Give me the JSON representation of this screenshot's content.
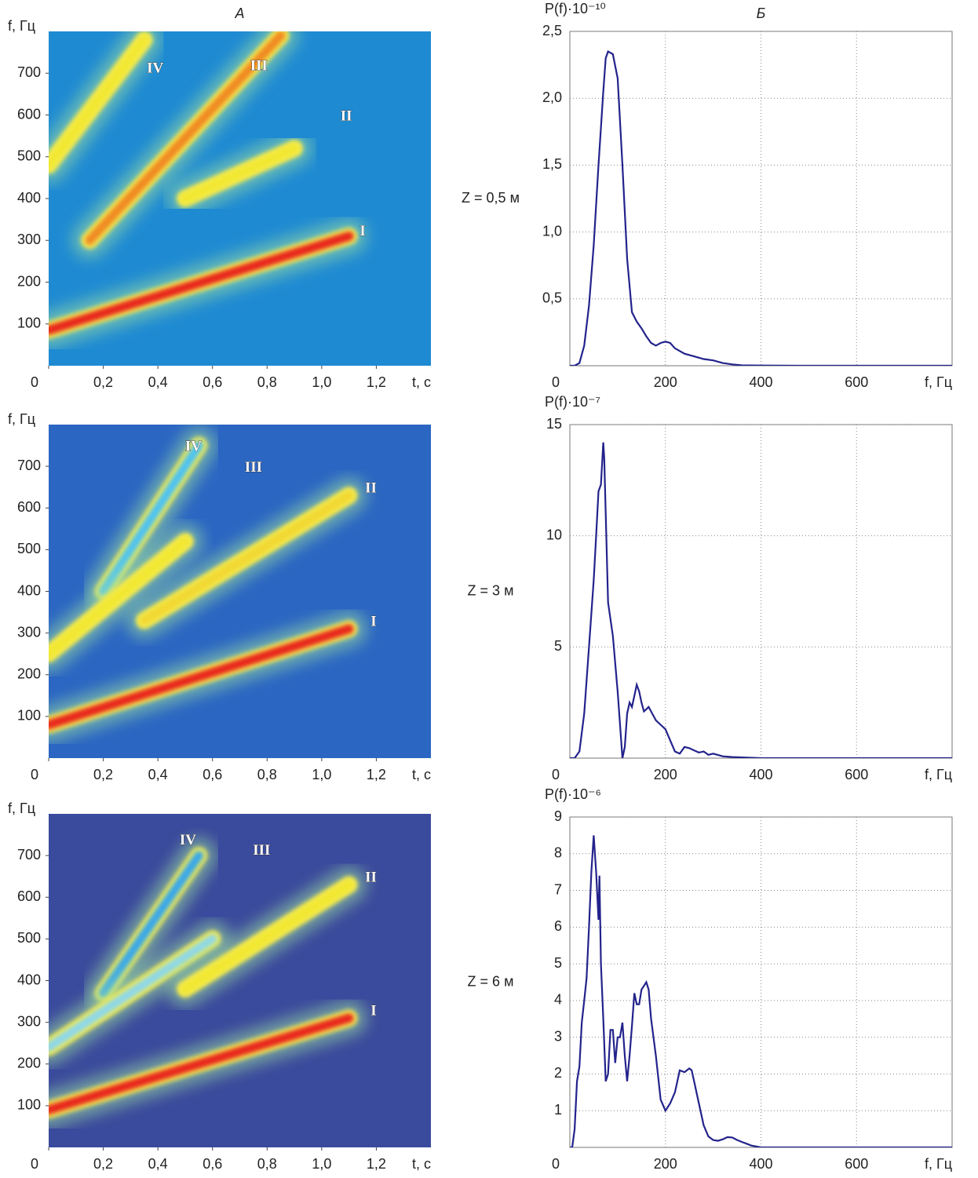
{
  "chart_data": [
    {
      "type": "spectrogram",
      "title": "А",
      "xlabel": "t, с",
      "ylabel": "f, Гц",
      "xlim": [
        0,
        1.4
      ],
      "ylim": [
        0,
        800
      ],
      "xticks": [
        0,
        {
          "value": 0.2,
          "label": "0,2"
        },
        {
          "value": 0.4,
          "label": "0,4"
        },
        {
          "value": 0.6,
          "label": "0,6"
        },
        {
          "value": 0.8,
          "label": "0,8"
        },
        {
          "value": 1.0,
          "label": "1,0"
        },
        {
          "value": 1.2,
          "label": "1,2"
        }
      ],
      "yticks": [
        100,
        200,
        300,
        400,
        500,
        600,
        700
      ],
      "background": "#1e8ad2",
      "ridges": [
        {
          "name": "IV",
          "color": "#f2e830",
          "x": [
            0,
            0.35
          ],
          "y": [
            480,
            780
          ],
          "label_at": [
            0.39,
            710
          ]
        },
        {
          "name": "III",
          "color": "#f08a20",
          "x": [
            0.15,
            0.85
          ],
          "y": [
            300,
            790
          ],
          "label_at": [
            0.77,
            715
          ]
        },
        {
          "name": "II",
          "color": "#f2e830",
          "x": [
            0.5,
            0.9
          ],
          "y": [
            400,
            520
          ],
          "label_at": [
            1.09,
            595
          ]
        },
        {
          "name": "I",
          "color": "#e8281c",
          "x": [
            0,
            1.1
          ],
          "y": [
            85,
            310
          ],
          "label_at": [
            1.15,
            320
          ]
        }
      ]
    },
    {
      "type": "line",
      "title": "Б",
      "annotation": "Z = 0,5 м",
      "xlabel": "f, Гц",
      "ylabel": "P(f)·10⁻¹⁰",
      "xlim": [
        0,
        800
      ],
      "ylim": [
        0,
        2.5
      ],
      "grid": true,
      "color": "#23238c",
      "xticks": [
        0,
        200,
        400,
        600
      ],
      "yticks": [
        {
          "value": 0.5,
          "label": "0,5"
        },
        {
          "value": 1.0,
          "label": "1,0"
        },
        {
          "value": 1.5,
          "label": "1,5"
        },
        {
          "value": 2.0,
          "label": "2,0"
        },
        {
          "value": 2.5,
          "label": "2,5"
        }
      ],
      "x": [
        0,
        10,
        20,
        30,
        40,
        50,
        60,
        70,
        75,
        80,
        90,
        100,
        110,
        120,
        130,
        140,
        150,
        160,
        170,
        180,
        190,
        200,
        210,
        220,
        240,
        260,
        280,
        300,
        320,
        340,
        360,
        400,
        500,
        600,
        800
      ],
      "values": [
        0,
        0,
        0.02,
        0.15,
        0.45,
        0.9,
        1.5,
        2.05,
        2.3,
        2.35,
        2.33,
        2.15,
        1.5,
        0.8,
        0.4,
        0.33,
        0.28,
        0.22,
        0.17,
        0.15,
        0.17,
        0.18,
        0.17,
        0.13,
        0.09,
        0.07,
        0.05,
        0.04,
        0.02,
        0.01,
        0.003,
        0.002,
        0,
        0,
        0
      ]
    },
    {
      "type": "spectrogram",
      "xlabel": "t, с",
      "ylabel": "f, Гц",
      "xlim": [
        0,
        1.4
      ],
      "ylim": [
        0,
        800
      ],
      "xticks": [
        0,
        {
          "value": 0.2,
          "label": "0,2"
        },
        {
          "value": 0.4,
          "label": "0,4"
        },
        {
          "value": 0.6,
          "label": "0,6"
        },
        {
          "value": 0.8,
          "label": "0,8"
        },
        {
          "value": 1.0,
          "label": "1,0"
        },
        {
          "value": 1.2,
          "label": "1,2"
        }
      ],
      "yticks": [
        100,
        200,
        300,
        400,
        500,
        600,
        700
      ],
      "background": "#2b66c2",
      "ridges": [
        {
          "name": "IV",
          "color": "#4fc3f0",
          "x": [
            0.2,
            0.55
          ],
          "y": [
            400,
            750
          ],
          "label_at": [
            0.53,
            745
          ]
        },
        {
          "name": "III",
          "color": "#f2e830",
          "x": [
            0,
            0.5
          ],
          "y": [
            250,
            520
          ],
          "label_at": [
            0.75,
            695
          ]
        },
        {
          "name": "II",
          "color": "#f2d830",
          "x": [
            0.35,
            1.1
          ],
          "y": [
            330,
            630
          ],
          "label_at": [
            1.18,
            645
          ]
        },
        {
          "name": "I",
          "color": "#e8281c",
          "x": [
            0,
            1.1
          ],
          "y": [
            80,
            310
          ],
          "label_at": [
            1.19,
            325
          ]
        }
      ]
    },
    {
      "type": "line",
      "annotation": "Z = 3 м",
      "xlabel": "f, Гц",
      "ylabel": "P(f)·10⁻⁷",
      "xlim": [
        0,
        800
      ],
      "ylim": [
        0,
        15
      ],
      "grid": true,
      "color": "#23238c",
      "xticks": [
        0,
        200,
        400,
        600
      ],
      "yticks": [
        5,
        10,
        15
      ],
      "x": [
        0,
        10,
        20,
        30,
        40,
        50,
        55,
        60,
        65,
        70,
        72,
        75,
        80,
        90,
        100,
        110,
        115,
        120,
        125,
        130,
        135,
        140,
        145,
        150,
        155,
        160,
        165,
        170,
        180,
        190,
        200,
        210,
        220,
        230,
        240,
        250,
        260,
        270,
        280,
        290,
        300,
        320,
        340,
        360,
        400,
        500,
        600,
        800
      ],
      "values": [
        0,
        0,
        0.3,
        2,
        5,
        8,
        10,
        12,
        12.3,
        14.2,
        13.5,
        11,
        7,
        5.5,
        3,
        0,
        0.5,
        2,
        2.5,
        2.3,
        2.8,
        3.3,
        3,
        2.5,
        2.1,
        2.2,
        2.3,
        2.1,
        1.7,
        1.5,
        1.3,
        0.8,
        0.3,
        0.2,
        0.5,
        0.45,
        0.35,
        0.25,
        0.3,
        0.15,
        0.2,
        0.08,
        0.05,
        0.03,
        0,
        0,
        0,
        0
      ]
    },
    {
      "type": "spectrogram",
      "xlabel": "t, с",
      "ylabel": "f, Гц",
      "xlim": [
        0,
        1.4
      ],
      "ylim": [
        0,
        800
      ],
      "xticks": [
        0,
        {
          "value": 0.2,
          "label": "0,2"
        },
        {
          "value": 0.4,
          "label": "0,4"
        },
        {
          "value": 0.6,
          "label": "0,6"
        },
        {
          "value": 0.8,
          "label": "0,8"
        },
        {
          "value": 1.0,
          "label": "1,0"
        },
        {
          "value": 1.2,
          "label": "1,2"
        }
      ],
      "yticks": [
        100,
        200,
        300,
        400,
        500,
        600,
        700
      ],
      "background": "#3a4a9c",
      "ridges": [
        {
          "name": "IV",
          "color": "#3aa8e8",
          "x": [
            0.2,
            0.55
          ],
          "y": [
            370,
            700
          ],
          "label_at": [
            0.51,
            735
          ]
        },
        {
          "name": "III",
          "color": "#8fd8e8",
          "x": [
            0,
            0.6
          ],
          "y": [
            240,
            500
          ],
          "label_at": [
            0.78,
            710
          ]
        },
        {
          "name": "II",
          "color": "#f2e830",
          "x": [
            0.5,
            1.1
          ],
          "y": [
            380,
            630
          ],
          "label_at": [
            1.18,
            645
          ]
        },
        {
          "name": "I",
          "color": "#e8281c",
          "x": [
            0,
            1.1
          ],
          "y": [
            90,
            310
          ],
          "label_at": [
            1.19,
            325
          ]
        }
      ]
    },
    {
      "type": "line",
      "annotation": "Z = 6 м",
      "xlabel": "f, Гц",
      "ylabel": "P(f)·10⁻⁶",
      "xlim": [
        0,
        800
      ],
      "ylim": [
        0,
        9
      ],
      "grid": true,
      "color": "#23238c",
      "xticks": [
        0,
        200,
        400,
        600
      ],
      "yticks": [
        1,
        2,
        3,
        4,
        5,
        6,
        7,
        8,
        9
      ],
      "x": [
        0,
        5,
        10,
        15,
        20,
        25,
        30,
        35,
        40,
        45,
        50,
        55,
        60,
        62,
        65,
        70,
        75,
        80,
        85,
        90,
        95,
        100,
        105,
        110,
        115,
        120,
        125,
        130,
        135,
        140,
        145,
        150,
        155,
        160,
        165,
        170,
        180,
        190,
        200,
        210,
        220,
        230,
        240,
        250,
        255,
        260,
        270,
        280,
        290,
        300,
        310,
        320,
        330,
        340,
        350,
        360,
        370,
        380,
        400,
        500,
        600,
        800
      ],
      "values": [
        0,
        0,
        0.5,
        1.8,
        2.2,
        3.4,
        4,
        4.6,
        6,
        7.5,
        8.5,
        7.5,
        6.2,
        7.4,
        5,
        3.5,
        1.8,
        2,
        3.2,
        3.2,
        2.3,
        3,
        3,
        3.4,
        2.5,
        1.8,
        2.5,
        3.3,
        4.2,
        3.9,
        3.9,
        4.3,
        4.4,
        4.5,
        4.3,
        3.5,
        2.5,
        1.3,
        1,
        1.2,
        1.5,
        2.1,
        2.05,
        2.15,
        2.1,
        1.8,
        1.2,
        0.6,
        0.3,
        0.2,
        0.18,
        0.22,
        0.28,
        0.27,
        0.2,
        0.15,
        0.1,
        0.05,
        0,
        0,
        0,
        0
      ]
    }
  ]
}
